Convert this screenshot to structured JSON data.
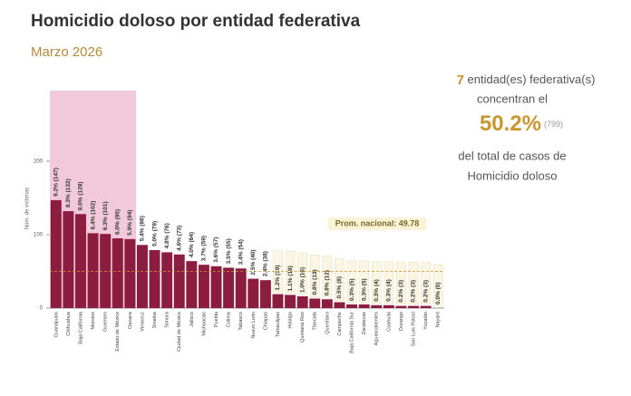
{
  "chart_data": {
    "type": "bar",
    "title": "Homicidio doloso por entidad federativa",
    "subtitle": "Marzo 2026",
    "y_label": "Núm. de víctimas",
    "categories": [
      "Guanajuato",
      "Chihuahua",
      "Baja California",
      "Morelos",
      "Guerrero",
      "Estado de México",
      "Oaxaca",
      "Veracruz",
      "Sinaloa",
      "Sonora",
      "Ciudad de México",
      "Jalisco",
      "Michoacán",
      "Puebla",
      "Colima",
      "Tabasco",
      "Nuevo León",
      "Chiapas",
      "Tamaulipas",
      "Hidalgo",
      "Quintana Roo",
      "Tlaxcala",
      "Querétaro",
      "Campeche",
      "Baja California Sur",
      "Zacatecas",
      "Aguascalientes",
      "Coahuila",
      "Durango",
      "San Luis Potosí",
      "Yucatán",
      "Nayarit"
    ],
    "values": [
      147,
      132,
      128,
      102,
      101,
      95,
      94,
      86,
      79,
      76,
      73,
      64,
      59,
      57,
      55,
      54,
      40,
      38,
      19,
      18,
      16,
      13,
      12,
      8,
      5,
      5,
      4,
      4,
      3,
      3,
      3,
      0
    ],
    "value_labels": [
      "9.2% (147)",
      "8.3% (132)",
      "8.0% (128)",
      "6.4% (102)",
      "6.3% (101)",
      "6.0% (95)",
      "5.9% (94)",
      "5.4% (86)",
      "5.0% (79)",
      "4.8% (76)",
      "4.6% (73)",
      "4.0% (64)",
      "3.7% (59)",
      "3.6% (57)",
      "3.5% (55)",
      "3.4% (54)",
      "2.5% (40)",
      "2.4% (38)",
      "1.2% (19)",
      "1.1% (18)",
      "1.0% (16)",
      "0.8% (13)",
      "0.8% (12)",
      "0.5% (8)",
      "0.3% (5)",
      "0.3% (5)",
      "0.3% (4)",
      "0.3% (4)",
      "0.2% (3)",
      "0.2% (3)",
      "0.2% (3)",
      "0.0% (0)"
    ],
    "color": "#8c1c40",
    "highlight_color": "#f2c9da",
    "ylim": [
      0,
      290
    ],
    "yticks": [
      0,
      100,
      200
    ],
    "average": 49.78,
    "average_label": "Prom. nacional: 49.78",
    "summary": {
      "count": 7,
      "line1": "entidad(es) federativa(s)",
      "line2": "concentran el",
      "share": "50.2%",
      "cases": "(799)",
      "line3": "del total de casos de",
      "line4": "Homicidio doloso"
    }
  }
}
